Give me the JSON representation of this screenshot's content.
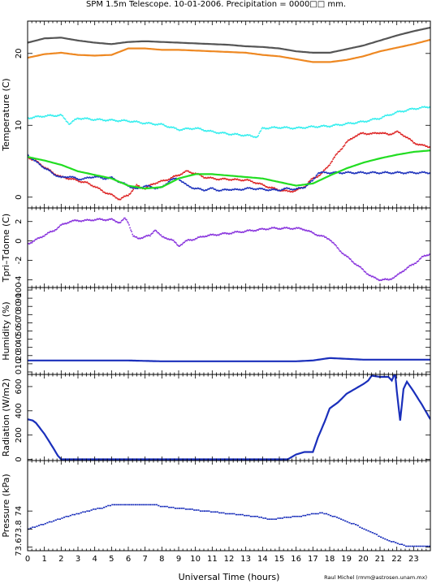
{
  "title": "SPM 1.5m Telescope. 10-01-2006. Precipitation = 0000□□ mm.",
  "credit": "Raul Michel (rmm@astrosen.unam.mx)",
  "chart_data": [
    {
      "type": "line",
      "id": "temperature",
      "ylabel": "Temperature (C)",
      "ylim": [
        -1.5,
        24.5
      ],
      "yticks": [
        0,
        10,
        20
      ],
      "xlim": [
        0,
        24
      ],
      "series": [
        {
          "color": "#555555",
          "style": "line",
          "x": [
            0,
            1,
            2,
            3,
            4,
            5,
            6,
            7,
            8,
            9,
            10,
            11,
            12,
            13,
            14,
            15,
            16,
            17,
            18,
            19,
            20,
            21,
            22,
            23,
            24
          ],
          "y": [
            21.5,
            22.1,
            22.2,
            21.8,
            21.5,
            21.3,
            21.6,
            21.7,
            21.6,
            21.5,
            21.4,
            21.3,
            21.2,
            21.0,
            20.9,
            20.7,
            20.3,
            20.1,
            20.1,
            20.6,
            21.1,
            21.8,
            22.5,
            23.1,
            23.6
          ]
        },
        {
          "color": "#ee8822",
          "style": "line",
          "x": [
            0,
            1,
            2,
            3,
            4,
            5,
            6,
            7,
            8,
            9,
            10,
            11,
            12,
            13,
            14,
            15,
            16,
            17,
            18,
            19,
            20,
            21,
            22,
            23,
            24
          ],
          "y": [
            19.4,
            19.9,
            20.1,
            19.8,
            19.7,
            19.8,
            20.7,
            20.7,
            20.5,
            20.5,
            20.4,
            20.3,
            20.2,
            20.1,
            19.8,
            19.6,
            19.2,
            18.8,
            18.8,
            19.1,
            19.6,
            20.3,
            20.8,
            21.3,
            21.9
          ]
        },
        {
          "color": "#33eeee",
          "style": "dots",
          "x": [
            0,
            1,
            2,
            2.5,
            3,
            4,
            5,
            6,
            7,
            8,
            9,
            10,
            11,
            12,
            13,
            13.7,
            14,
            15,
            16,
            17,
            18,
            19,
            20,
            21,
            22,
            23,
            24
          ],
          "y": [
            11.0,
            11.3,
            11.4,
            10.2,
            11.0,
            10.8,
            10.7,
            10.6,
            10.3,
            10.1,
            9.4,
            9.6,
            9.1,
            8.8,
            8.6,
            8.4,
            9.6,
            9.7,
            9.6,
            9.8,
            9.9,
            10.2,
            10.5,
            11.0,
            11.8,
            12.3,
            12.6
          ]
        },
        {
          "color": "#dd2222",
          "style": "dots",
          "x": [
            0,
            0.5,
            1,
            1.5,
            2,
            2.5,
            3,
            3.5,
            4,
            4.5,
            5,
            5.5,
            6,
            6.5,
            7,
            7.5,
            8,
            8.5,
            9,
            9.5,
            10,
            10.5,
            11,
            11.5,
            12,
            12.5,
            13,
            13.5,
            14,
            14.5,
            15,
            15.5,
            16,
            16.5,
            17,
            17.5,
            18,
            18.5,
            19,
            19.5,
            20,
            20.5,
            21,
            21.5,
            22,
            22.5,
            23,
            23.5,
            24
          ],
          "y": [
            5.6,
            5.0,
            4.2,
            3.4,
            2.8,
            2.6,
            2.3,
            2.0,
            1.5,
            0.8,
            0.3,
            -0.3,
            0.3,
            1.6,
            1.2,
            1.9,
            2.2,
            2.6,
            3.1,
            3.6,
            3.3,
            2.8,
            2.6,
            2.5,
            2.5,
            2.4,
            2.4,
            2.1,
            1.7,
            1.3,
            1.0,
            0.8,
            0.9,
            1.5,
            2.6,
            3.2,
            4.6,
            6.2,
            7.6,
            8.5,
            8.9,
            8.8,
            9.0,
            8.7,
            9.1,
            8.5,
            7.6,
            7.2,
            7.0
          ]
        },
        {
          "color": "#1a2fbb",
          "style": "dots",
          "x": [
            0,
            0.5,
            1,
            1.5,
            2,
            2.5,
            3,
            3.5,
            4,
            4.5,
            5,
            5.5,
            6,
            6.5,
            7,
            7.5,
            8,
            8.5,
            9,
            9.5,
            10,
            10.5,
            11,
            11.5,
            12,
            12.5,
            13,
            13.5,
            14,
            14.5,
            15,
            15.5,
            16,
            16.5,
            17,
            17.3,
            17.5,
            18,
            19,
            20,
            21,
            22,
            23,
            24
          ],
          "y": [
            5.9,
            4.9,
            4.1,
            3.3,
            2.7,
            2.9,
            2.5,
            2.6,
            2.9,
            2.6,
            2.7,
            2.1,
            1.6,
            1.1,
            1.6,
            1.3,
            1.3,
            2.4,
            2.6,
            1.6,
            1.2,
            1.0,
            1.2,
            0.9,
            1.1,
            1.0,
            1.2,
            1.2,
            1.1,
            1.0,
            1.0,
            1.2,
            1.1,
            1.4,
            2.3,
            3.4,
            3.4,
            3.4,
            3.4,
            3.4,
            3.4,
            3.4,
            3.4,
            3.4
          ]
        },
        {
          "color": "#22dd22",
          "style": "line",
          "x": [
            0,
            1,
            2,
            3,
            4,
            5,
            6,
            7,
            8,
            9,
            10,
            11,
            12,
            13,
            14,
            15,
            16,
            17,
            18,
            19,
            20,
            21,
            22,
            23,
            24
          ],
          "y": [
            5.6,
            5.1,
            4.5,
            3.6,
            3.1,
            2.6,
            1.6,
            1.2,
            1.4,
            2.6,
            3.2,
            3.2,
            3.0,
            2.8,
            2.6,
            2.1,
            1.6,
            1.9,
            3.0,
            4.0,
            4.8,
            5.4,
            5.9,
            6.3,
            6.5
          ]
        }
      ]
    },
    {
      "type": "scatter",
      "id": "tpri-tdome",
      "ylabel": "Tpri–Tdome (C)",
      "ylim": [
        -4.8,
        3.4
      ],
      "yticks": [
        -4,
        -2,
        0,
        2
      ],
      "xlim": [
        0,
        24
      ],
      "series": [
        {
          "color": "#8833dd",
          "style": "dots",
          "x": [
            0,
            0.5,
            1,
            1.5,
            2,
            2.5,
            3,
            3.5,
            4,
            4.5,
            5,
            5.5,
            5.8,
            6,
            6.3,
            6.6,
            7,
            7.3,
            7.6,
            8,
            8.3,
            8.6,
            9,
            9.3,
            9.6,
            10,
            10.5,
            11,
            11.5,
            12,
            12.5,
            13,
            13.5,
            14,
            14.5,
            15,
            15.5,
            16,
            16.5,
            17,
            17.5,
            18,
            18.5,
            19,
            19.5,
            20,
            20.5,
            21,
            21.5,
            22,
            22.5,
            23,
            23.5,
            24
          ],
          "y": [
            -0.3,
            0.1,
            0.6,
            1.0,
            1.6,
            2.0,
            2.1,
            2.1,
            2.2,
            2.2,
            2.2,
            1.9,
            2.3,
            1.9,
            0.5,
            0.2,
            0.5,
            0.5,
            1.2,
            0.4,
            0.3,
            0.1,
            -0.5,
            -0.2,
            0.1,
            0.2,
            0.5,
            0.6,
            0.7,
            0.8,
            0.9,
            1.0,
            1.1,
            1.2,
            1.3,
            1.3,
            1.3,
            1.3,
            1.2,
            0.8,
            0.5,
            0.2,
            -0.8,
            -1.6,
            -2.3,
            -3.0,
            -3.7,
            -4.0,
            -4.0,
            -3.6,
            -2.9,
            -2.4,
            -1.7,
            -1.3
          ]
        }
      ]
    },
    {
      "type": "line",
      "id": "humidity",
      "ylabel": "Humidity (%)",
      "ylim": [
        -3,
        103
      ],
      "yticks": [
        0,
        10,
        20,
        30,
        40,
        50,
        60,
        70,
        80,
        90,
        100
      ],
      "xlim": [
        0,
        24
      ],
      "series": [
        {
          "color": "#1a2fbb",
          "style": "line",
          "x": [
            0,
            2,
            4,
            6,
            8,
            10,
            12,
            14,
            16,
            17,
            18,
            19,
            20,
            22,
            24
          ],
          "y": [
            14,
            14,
            14,
            14,
            13,
            13,
            13,
            13,
            13,
            14,
            17,
            16,
            15,
            15,
            15
          ]
        }
      ]
    },
    {
      "type": "line",
      "id": "radiation",
      "ylabel": "Radiation (W/m2)",
      "ylim": [
        -10,
        700
      ],
      "yticks": [
        0,
        200,
        400,
        600
      ],
      "xlim": [
        0,
        24
      ],
      "series": [
        {
          "color": "#1a2fbb",
          "style": "line",
          "x": [
            0,
            0.3,
            0.5,
            1,
            1.5,
            1.8,
            2,
            4,
            6,
            8,
            10,
            12,
            14,
            15.5,
            16,
            16.5,
            17,
            17.3,
            17.7,
            18,
            18.5,
            19,
            19.5,
            20,
            20.3,
            20.5,
            21,
            21.5,
            21.7,
            21.9,
            22,
            22.2,
            22.4,
            22.6,
            23,
            23.5,
            24
          ],
          "y": [
            330,
            320,
            300,
            210,
            100,
            30,
            0,
            0,
            0,
            0,
            0,
            0,
            0,
            0,
            40,
            60,
            60,
            180,
            310,
            420,
            470,
            540,
            580,
            620,
            650,
            690,
            680,
            680,
            650,
            710,
            560,
            320,
            580,
            640,
            560,
            450,
            330
          ]
        }
      ]
    },
    {
      "type": "scatter",
      "id": "pressure",
      "ylabel": "Pressure (kPa)",
      "ylim": [
        73.56,
        74.56
      ],
      "yticks": [
        73.6,
        73.8,
        74
      ],
      "xlim": [
        0,
        24
      ],
      "xlabel": "Universal Time (hours)",
      "xticks": [
        0,
        1,
        2,
        3,
        4,
        5,
        6,
        7,
        8,
        9,
        10,
        11,
        12,
        13,
        14,
        15,
        16,
        17,
        18,
        19,
        20,
        21,
        22,
        23
      ],
      "series": [
        {
          "color": "#1a2fbb",
          "style": "steps",
          "x": [
            0,
            0.5,
            1,
            1.5,
            2,
            2.5,
            3,
            3.5,
            4,
            4.5,
            5,
            5.5,
            6,
            6.5,
            7,
            7.5,
            8,
            8.5,
            9,
            9.5,
            10,
            10.5,
            11,
            11.5,
            12,
            12.5,
            13,
            13.5,
            14,
            14.5,
            15,
            15.5,
            16,
            16.5,
            17,
            17.5,
            18,
            18.5,
            19,
            19.5,
            20,
            20.5,
            21,
            21.5,
            22,
            22.5,
            23,
            23.5,
            24
          ],
          "y": [
            73.8,
            73.83,
            73.86,
            73.89,
            73.92,
            73.95,
            73.97,
            74.0,
            74.02,
            74.04,
            74.07,
            74.07,
            74.07,
            74.07,
            74.07,
            74.07,
            74.05,
            74.04,
            74.03,
            74.02,
            74.01,
            74.0,
            73.99,
            73.98,
            73.97,
            73.96,
            73.95,
            73.94,
            73.92,
            73.91,
            73.92,
            73.93,
            73.94,
            73.95,
            73.97,
            73.98,
            73.95,
            73.92,
            73.88,
            73.85,
            73.8,
            73.76,
            73.71,
            73.67,
            73.64,
            73.61,
            73.61,
            73.61,
            73.61
          ]
        }
      ]
    }
  ]
}
